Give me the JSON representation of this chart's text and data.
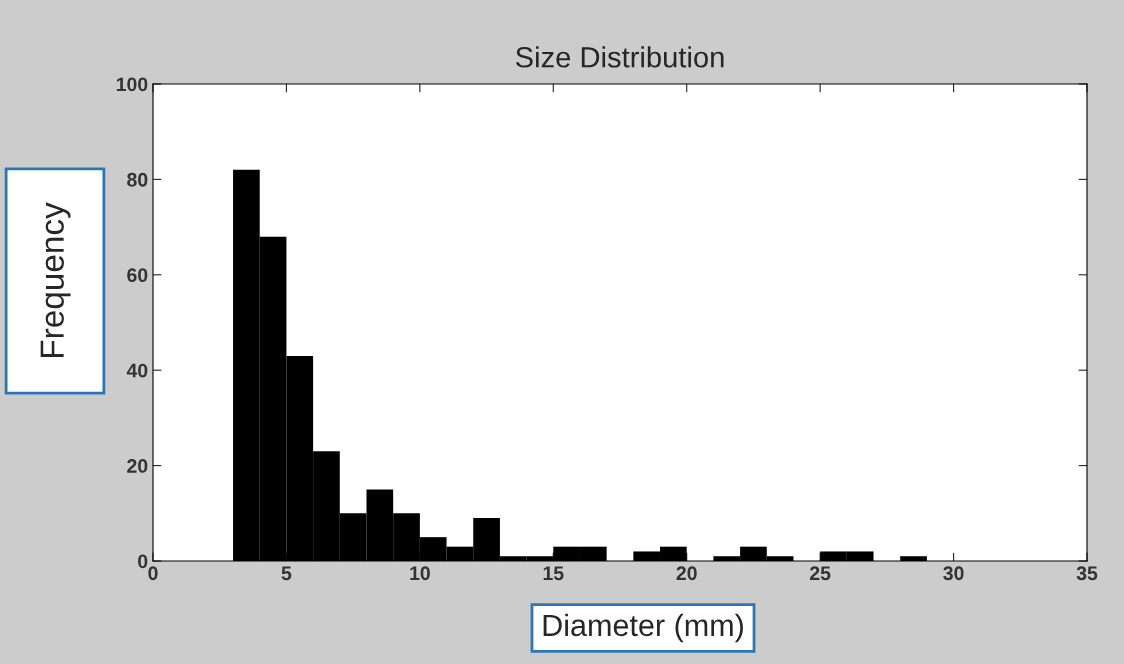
{
  "chart_data": {
    "type": "histogram",
    "title": "Size Distribution",
    "xlabel": "Diameter (mm)",
    "ylabel": "Frequency",
    "bins": [
      3,
      4,
      5,
      6,
      7,
      8,
      9,
      10,
      11,
      12,
      13,
      14,
      15,
      16,
      17,
      18,
      19,
      20,
      21,
      22,
      23,
      24,
      25,
      26,
      27,
      28,
      29
    ],
    "values": [
      82,
      68,
      43,
      23,
      10,
      15,
      10,
      5,
      3,
      9,
      1,
      1,
      3,
      3,
      0,
      2,
      3,
      0,
      1,
      3,
      1,
      0,
      2,
      2,
      0,
      1
    ],
    "color": "#000000",
    "xlim": [
      0,
      35
    ],
    "xticks": [
      0,
      5,
      10,
      15,
      20,
      25,
      30,
      35
    ],
    "ylim": [
      0,
      100
    ],
    "yticks": [
      0,
      20,
      40,
      60,
      80,
      100
    ],
    "grid": false
  }
}
